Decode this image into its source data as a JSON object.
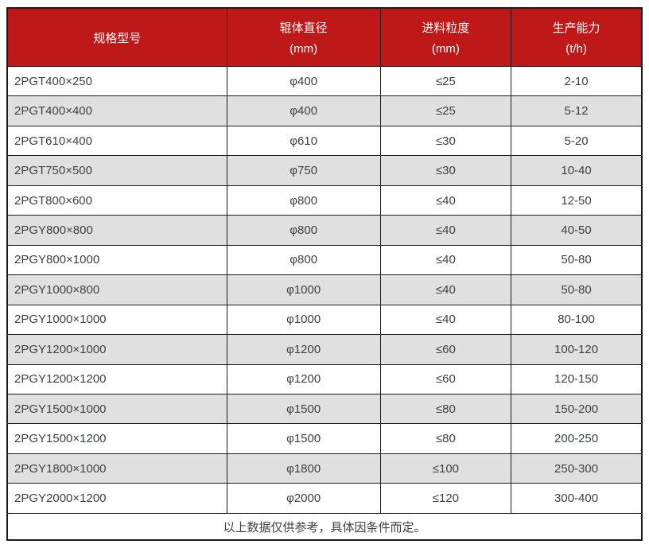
{
  "colors": {
    "header_bg": "#be1818",
    "header_text": "#ffffff",
    "row_bg": "#ffffff",
    "row_alt_bg": "#e0e0e0",
    "border": "#1c1c1c",
    "body_text": "#3d4046"
  },
  "table": {
    "columns": [
      {
        "title": "规格型号",
        "unit": ""
      },
      {
        "title": "辊体直径",
        "unit": "(mm)"
      },
      {
        "title": "进料粒度",
        "unit": "(mm)"
      },
      {
        "title": "生产能力",
        "unit": "(t/h)"
      }
    ],
    "rows": [
      [
        "2PGT400×250",
        "φ400",
        "≤25",
        "2-10"
      ],
      [
        "2PGT400×400",
        "φ400",
        "≤25",
        "5-12"
      ],
      [
        "2PGT610×400",
        "φ610",
        "≤30",
        "5-20"
      ],
      [
        "2PGT750×500",
        "φ750",
        "≤30",
        "10-40"
      ],
      [
        "2PGT800×600",
        "φ800",
        "≤40",
        "12-50"
      ],
      [
        "2PGY800×800",
        "φ800",
        "≤40",
        "40-50"
      ],
      [
        "2PGY800×1000",
        "φ800",
        "≤40",
        "50-80"
      ],
      [
        "2PGY1000×800",
        "φ1000",
        "≤40",
        "50-80"
      ],
      [
        "2PGY1000×1000",
        "φ1000",
        "≤40",
        "80-100"
      ],
      [
        "2PGY1200×1000",
        "φ1200",
        "≤60",
        "100-120"
      ],
      [
        "2PGY1200×1200",
        "φ1200",
        "≤60",
        "120-150"
      ],
      [
        "2PGY1500×1000",
        "φ1500",
        "≤80",
        "150-200"
      ],
      [
        "2PGY1500×1200",
        "φ1500",
        "≤80",
        "200-250"
      ],
      [
        "2PGY1800×1000",
        "φ1800",
        "≤100",
        "250-300"
      ],
      [
        "2PGY2000×1200",
        "φ2000",
        "≤120",
        "300-400"
      ]
    ],
    "footnote": "以上数据仅供参考，具体因条件而定。"
  },
  "chart_data": {
    "type": "table",
    "title": "",
    "columns": [
      "规格型号",
      "辊体直径 (mm)",
      "进料粒度 (mm)",
      "生产能力 (t/h)"
    ],
    "rows": [
      [
        "2PGT400×250",
        "φ400",
        "≤25",
        "2-10"
      ],
      [
        "2PGT400×400",
        "φ400",
        "≤25",
        "5-12"
      ],
      [
        "2PGT610×400",
        "φ610",
        "≤30",
        "5-20"
      ],
      [
        "2PGT750×500",
        "φ750",
        "≤30",
        "10-40"
      ],
      [
        "2PGT800×600",
        "φ800",
        "≤40",
        "12-50"
      ],
      [
        "2PGY800×800",
        "φ800",
        "≤40",
        "40-50"
      ],
      [
        "2PGY800×1000",
        "φ800",
        "≤40",
        "50-80"
      ],
      [
        "2PGY1000×800",
        "φ1000",
        "≤40",
        "50-80"
      ],
      [
        "2PGY1000×1000",
        "φ1000",
        "≤40",
        "80-100"
      ],
      [
        "2PGY1200×1000",
        "φ1200",
        "≤60",
        "100-120"
      ],
      [
        "2PGY1200×1200",
        "φ1200",
        "≤60",
        "120-150"
      ],
      [
        "2PGY1500×1000",
        "φ1500",
        "≤80",
        "150-200"
      ],
      [
        "2PGY1500×1200",
        "φ1500",
        "≤80",
        "200-250"
      ],
      [
        "2PGY1800×1000",
        "φ1800",
        "≤100",
        "250-300"
      ],
      [
        "2PGY2000×1200",
        "φ2000",
        "≤120",
        "300-400"
      ]
    ],
    "footnote": "以上数据仅供参考，具体因条件而定。",
    "layout": {
      "header_bg": "#be1818",
      "alt_row_bg": "#e0e0e0",
      "grid": true
    }
  }
}
